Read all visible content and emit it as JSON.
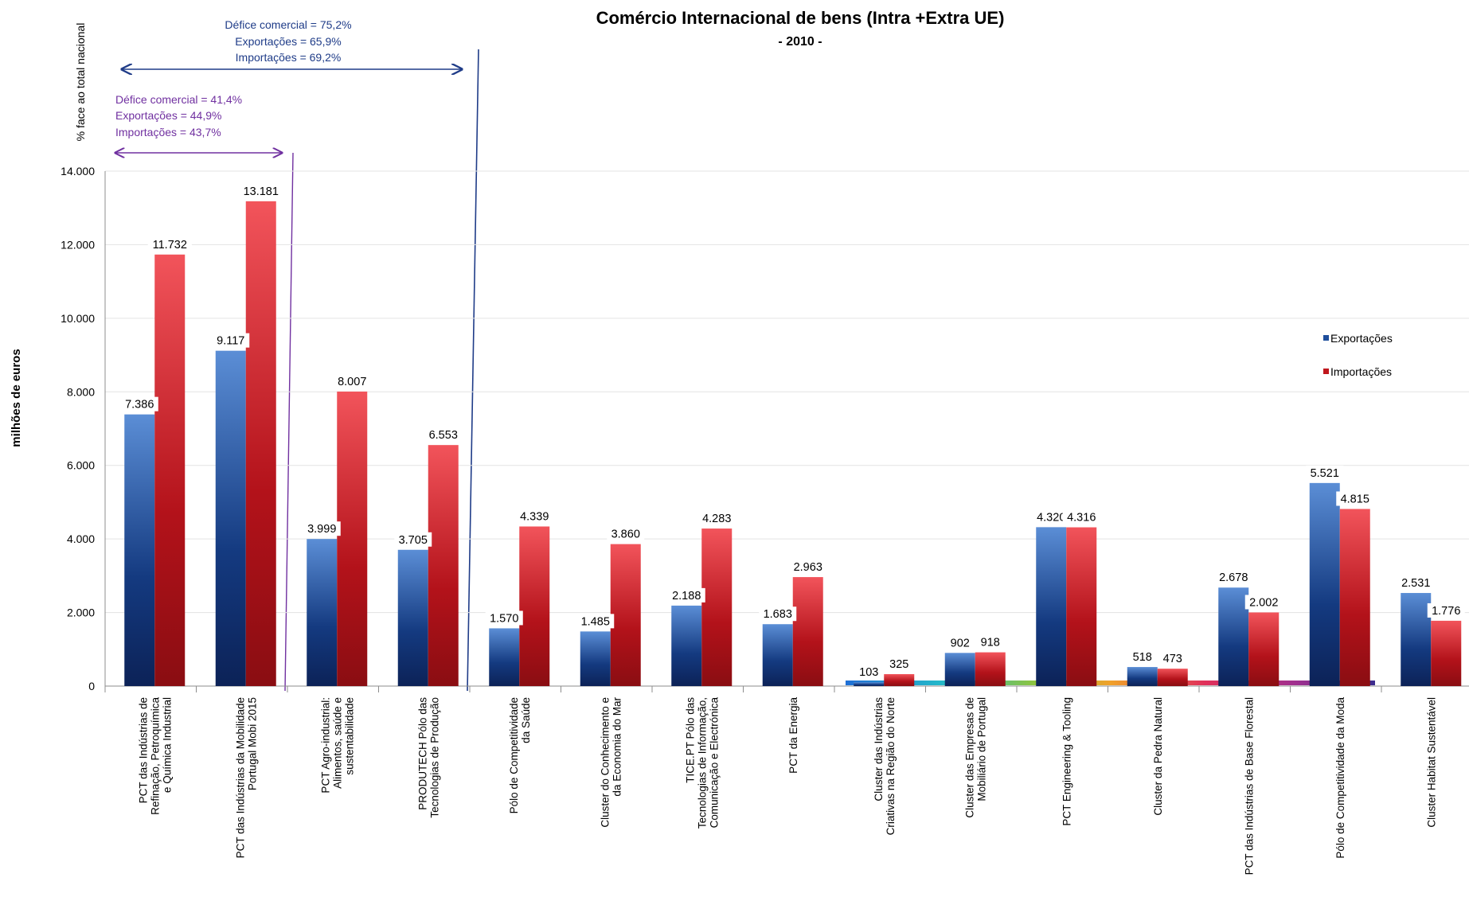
{
  "chart_data": {
    "type": "bar",
    "title": "Comércio Internacional de bens (Intra +Extra UE)",
    "subtitle": "- 2010 -",
    "ylabel": "milhões de euros",
    "secondary_label": "% face ao total nacional",
    "ylim": [
      0,
      14000
    ],
    "yticks": [
      "0",
      "2.000",
      "4.000",
      "6.000",
      "8.000",
      "10.000",
      "12.000",
      "14.000"
    ],
    "ytick_values": [
      0,
      2000,
      4000,
      6000,
      8000,
      10000,
      12000,
      14000
    ],
    "grid": true,
    "legend_position": "right",
    "categories": [
      "PCT das Indústrias de Refinação, Petroquímica e Química Industrial",
      "PCT das Indústrias da Mobilidade Portugal Mobi 2015",
      "PCT Agro-industrial: Alimentos, saúde e sustentabilidade",
      "PRODUTECH Pólo das Tecnologias de Produção",
      "Pólo de Competitividade da Saúde",
      "Cluster do Conhecimento e da Economia do Mar",
      "TICE.PT Pólo das Tecnologias de Informação, Comunicação e Electrónica",
      "PCT da Energia",
      "Cluster das Indústrias Criativas na Região do Norte",
      "Cluster das Empresas de Mobiliário de Portugal",
      "PCT Engineering & Tooling",
      "Cluster da Pedra Natural",
      "PCT das Indústrias de Base Florestal",
      "Pólo de Competitividade da Moda",
      "Cluster Habitat Sustentável"
    ],
    "category_lines": [
      [
        "PCT das Indústrias de",
        "Refinação, Petroquímica",
        "e Química Industrial"
      ],
      [
        "PCT das Indústrias da Mobilidade",
        "Portugal Mobi 2015"
      ],
      [
        "PCT Agro-industrial:",
        "Alimentos, saúde e",
        "sustentabilidade"
      ],
      [
        "PRODUTECH Pólo das",
        "Tecnologias de Produção"
      ],
      [
        "Pólo de Competitividade",
        "da Saúde"
      ],
      [
        "Cluster do Conhecimento e",
        "da Economia do Mar"
      ],
      [
        "TICE.PT Pólo das",
        "Tecnologias de Informação,",
        "Comunicação e Electrónica"
      ],
      [
        "PCT da Energia"
      ],
      [
        "Cluster das Indústrias",
        "Criativas na Região do Norte"
      ],
      [
        "Cluster das Empresas de",
        "Mobiliário de Portugal"
      ],
      [
        "PCT Engineering & Tooling"
      ],
      [
        "Cluster da Pedra Natural"
      ],
      [
        "PCT das Indústrias de Base Florestal"
      ],
      [
        "Pólo de Competitividade da Moda"
      ],
      [
        "Cluster Habitat Sustentável"
      ]
    ],
    "series": [
      {
        "name": "Exportações",
        "values": [
          7386,
          9117,
          3999,
          3705,
          1570,
          1485,
          2188,
          1683,
          103,
          902,
          4320,
          518,
          2678,
          5521,
          2531
        ],
        "labels": [
          "7.386",
          "9.117",
          "3.999",
          "3.705",
          "1.570",
          "1.485",
          "2.188",
          "1.683",
          "103",
          "902",
          "4.320",
          "518",
          "2.678",
          "5.521",
          "2.531"
        ],
        "color": "#1f4e9c"
      },
      {
        "name": "Importações",
        "values": [
          11732,
          13181,
          8007,
          6553,
          4339,
          3860,
          4283,
          2963,
          325,
          918,
          4316,
          473,
          2002,
          4815,
          1776
        ],
        "labels": [
          "11.732",
          "13.181",
          "8.007",
          "6.553",
          "4.339",
          "3.860",
          "4.283",
          "2.963",
          "325",
          "918",
          "4.316",
          "473",
          "2.002",
          "4.815",
          "1.776"
        ],
        "color": "#c0171d"
      }
    ],
    "annotations": {
      "group_a": {
        "lines": [
          "Défice comercial  = 75,2%",
          "Exportações = 65,9%",
          "Importações = 69,2%"
        ],
        "color": "#1f3c88"
      },
      "group_b": {
        "lines": [
          "Défice comercial  = 41,4%",
          "Exportações = 44,9%",
          "Importações = 43,7%"
        ],
        "color": "#7030a0"
      }
    }
  }
}
